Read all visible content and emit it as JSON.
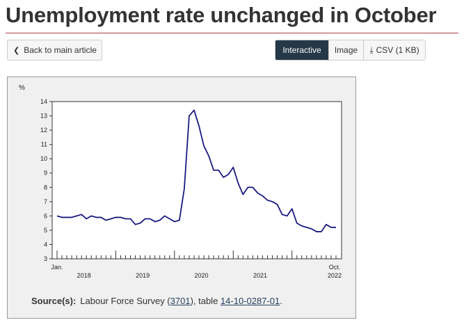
{
  "header": {
    "title": "Unemployment rate unchanged in October"
  },
  "toolbar": {
    "back_label": "Back to main article",
    "back_icon": "chevron-left-icon",
    "views": [
      {
        "label": "Interactive",
        "active": true
      },
      {
        "label": "Image",
        "active": false
      },
      {
        "label": "CSV (1 KB)",
        "active": false,
        "icon": "download-icon"
      }
    ]
  },
  "colors": {
    "accent_rule": "#af3c43",
    "active_button": "#253848",
    "series_line": "#1a1a80",
    "panel_background": "#f0f0f0"
  },
  "chart_data": {
    "type": "line",
    "title": "",
    "ylabel": "%",
    "xlabel": "",
    "ylim": [
      3,
      14
    ],
    "yticks": [
      3,
      4,
      5,
      6,
      7,
      8,
      9,
      10,
      11,
      12,
      13,
      14
    ],
    "grid": false,
    "legend": "none",
    "start_label": "Jan.",
    "end_label_month": "Oct.",
    "end_label_year": "2022",
    "year_labels": [
      "2018",
      "2019",
      "2020",
      "2021"
    ],
    "x": [
      "2018-01",
      "2018-02",
      "2018-03",
      "2018-04",
      "2018-05",
      "2018-06",
      "2018-07",
      "2018-08",
      "2018-09",
      "2018-10",
      "2018-11",
      "2018-12",
      "2019-01",
      "2019-02",
      "2019-03",
      "2019-04",
      "2019-05",
      "2019-06",
      "2019-07",
      "2019-08",
      "2019-09",
      "2019-10",
      "2019-11",
      "2019-12",
      "2020-01",
      "2020-02",
      "2020-03",
      "2020-04",
      "2020-05",
      "2020-06",
      "2020-07",
      "2020-08",
      "2020-09",
      "2020-10",
      "2020-11",
      "2020-12",
      "2021-01",
      "2021-02",
      "2021-03",
      "2021-04",
      "2021-05",
      "2021-06",
      "2021-07",
      "2021-08",
      "2021-09",
      "2021-10",
      "2021-11",
      "2021-12",
      "2022-01",
      "2022-02",
      "2022-03",
      "2022-04",
      "2022-05",
      "2022-06",
      "2022-07",
      "2022-08",
      "2022-09",
      "2022-10"
    ],
    "series": [
      {
        "values": [
          6.0,
          5.9,
          5.9,
          5.9,
          6.0,
          6.1,
          5.8,
          6.0,
          5.9,
          5.9,
          5.7,
          5.8,
          5.9,
          5.9,
          5.8,
          5.8,
          5.4,
          5.5,
          5.8,
          5.8,
          5.6,
          5.7,
          6.0,
          5.8,
          5.6,
          5.7,
          7.9,
          13.0,
          13.4,
          12.3,
          10.9,
          10.2,
          9.2,
          9.2,
          8.7,
          8.9,
          9.4,
          8.3,
          7.5,
          8.0,
          8.0,
          7.6,
          7.4,
          7.1,
          7.0,
          6.8,
          6.1,
          6.0,
          6.5,
          5.5,
          5.3,
          5.2,
          5.1,
          4.9,
          4.9,
          5.4,
          5.2,
          5.2
        ]
      }
    ]
  },
  "source": {
    "label": "Source(s):",
    "text_before": "Labour Force Survey (",
    "survey_number": "3701",
    "text_middle": "), table ",
    "table_number": "14-10-0287-01",
    "text_after": "."
  }
}
